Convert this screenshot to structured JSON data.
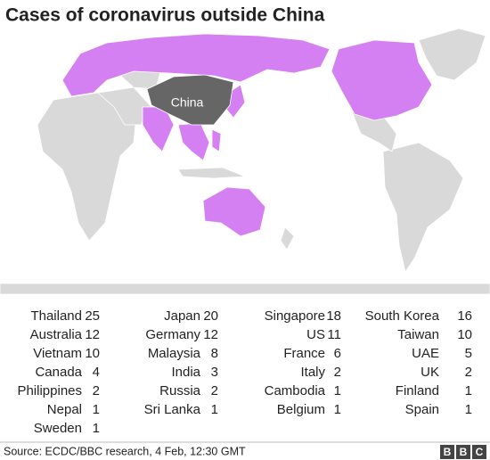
{
  "header": {
    "title": "Cases of coronavirus outside China"
  },
  "map": {
    "label": "China"
  },
  "table": {
    "columns": [
      [
        {
          "country": "Thailand",
          "cases": 25
        },
        {
          "country": "Australia",
          "cases": 12
        },
        {
          "country": "Vietnam",
          "cases": 10
        },
        {
          "country": "Canada",
          "cases": 4
        },
        {
          "country": "Philippines",
          "cases": 2
        },
        {
          "country": "Nepal",
          "cases": 1
        },
        {
          "country": "Sweden",
          "cases": 1
        }
      ],
      [
        {
          "country": "Japan",
          "cases": 20
        },
        {
          "country": "Germany",
          "cases": 12
        },
        {
          "country": "Malaysia",
          "cases": 8
        },
        {
          "country": "India",
          "cases": 3
        },
        {
          "country": "Russia",
          "cases": 2
        },
        {
          "country": "Sri Lanka",
          "cases": 1
        }
      ],
      [
        {
          "country": "Singapore",
          "cases": 18
        },
        {
          "country": "US",
          "cases": 11
        },
        {
          "country": "France",
          "cases": 6
        },
        {
          "country": "Italy",
          "cases": 2
        },
        {
          "country": "Cambodia",
          "cases": 1
        },
        {
          "country": "Belgium",
          "cases": 1
        }
      ],
      [
        {
          "country": "South Korea",
          "cases": 16
        },
        {
          "country": "Taiwan",
          "cases": 10
        },
        {
          "country": "UAE",
          "cases": 5
        },
        {
          "country": "UK",
          "cases": 2
        },
        {
          "country": "Finland",
          "cases": 1
        },
        {
          "country": "Spain",
          "cases": 1
        }
      ]
    ]
  },
  "footer": {
    "source": "Source: ECDC/BBC research, 4 Feb, 12:30 GMT",
    "logo": [
      "B",
      "B",
      "C"
    ]
  }
}
